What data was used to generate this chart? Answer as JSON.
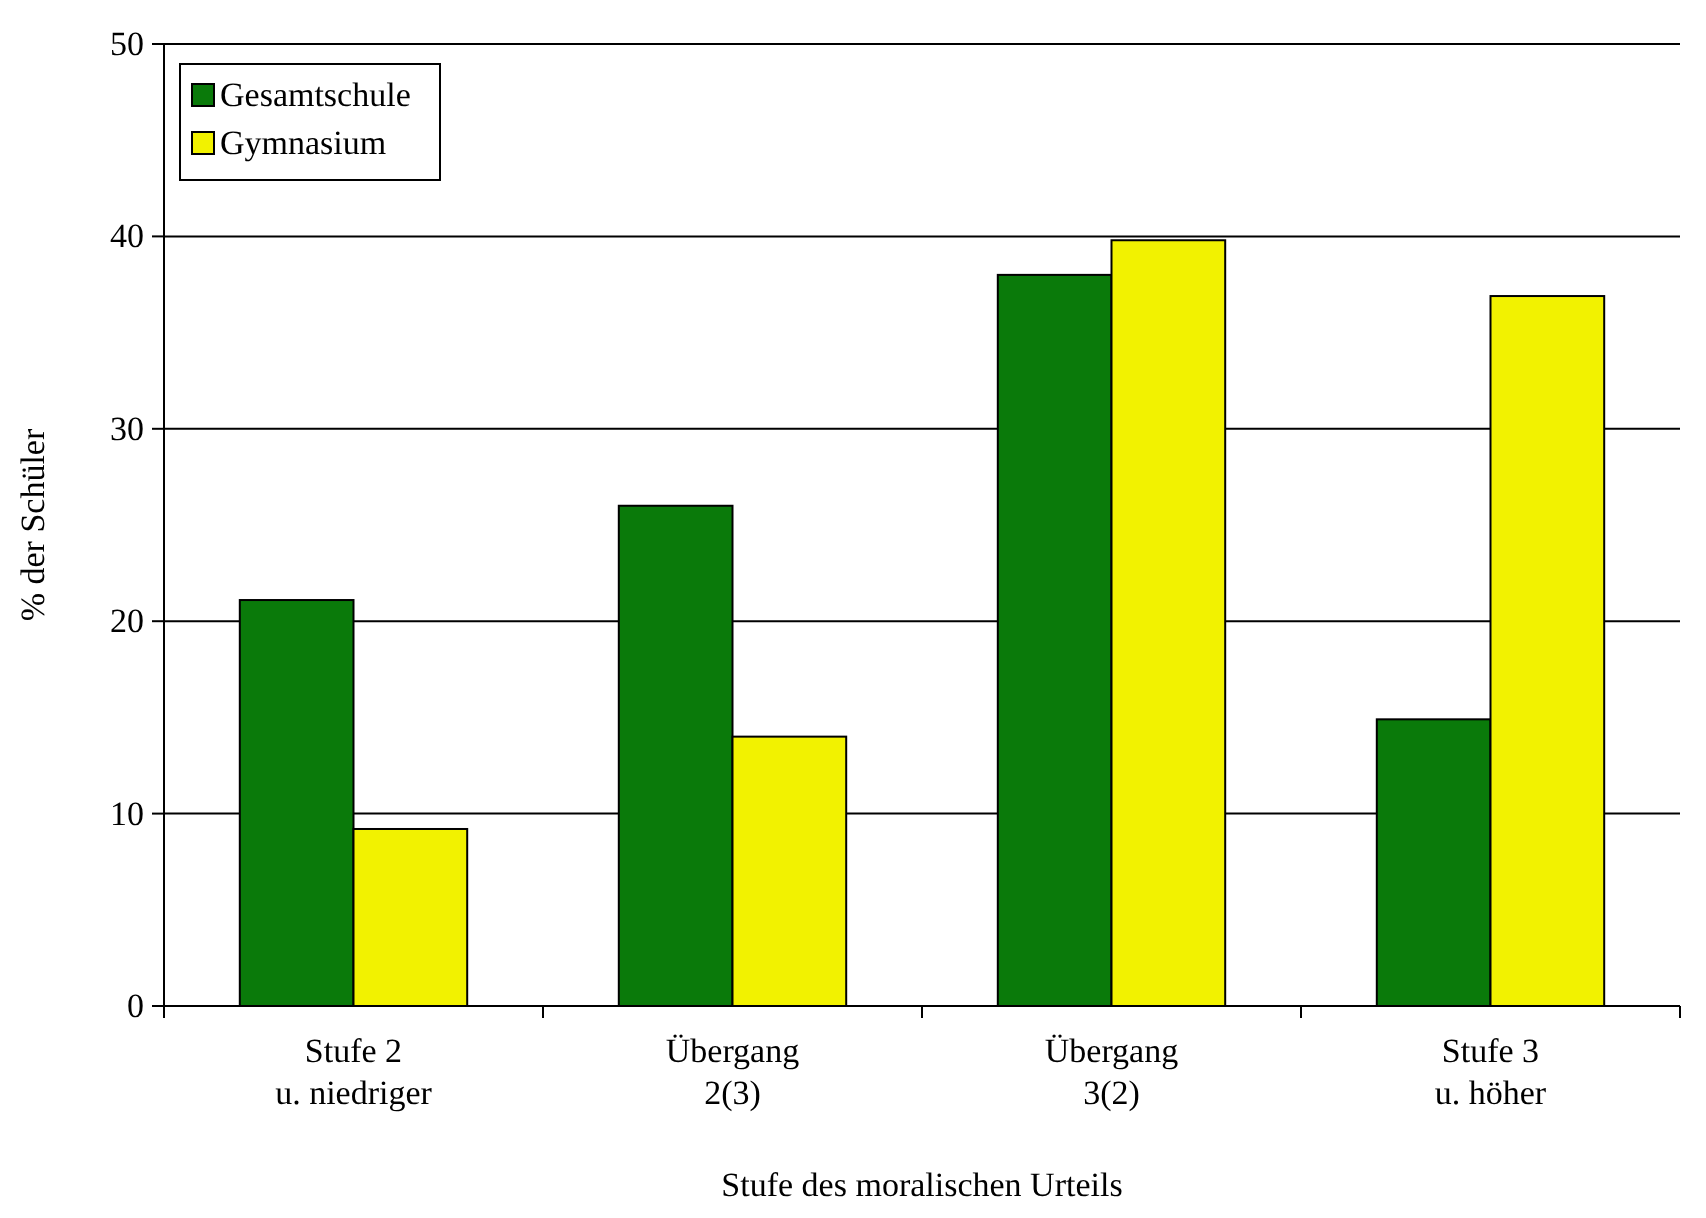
{
  "chart_data": {
    "type": "bar",
    "xlabel": "Stufe des moralischen Urteils",
    "ylabel": "% der Schüler",
    "categories": [
      "Stufe 2\nu. niedriger",
      "Übergang\n2(3)",
      "Übergang\n3(2)",
      "Stufe 3\nu. höher"
    ],
    "series": [
      {
        "name": "Gesamtschule",
        "color": "#0a7a0a",
        "values": [
          21.1,
          26,
          38,
          14.9
        ]
      },
      {
        "name": "Gymnasium",
        "color": "#f2f200",
        "values": [
          9.2,
          14,
          39.8,
          36.9
        ]
      }
    ],
    "ylim": [
      0,
      50
    ],
    "yticks": [
      0,
      10,
      20,
      30,
      40,
      50
    ],
    "grid": "y",
    "legend": "top left"
  }
}
